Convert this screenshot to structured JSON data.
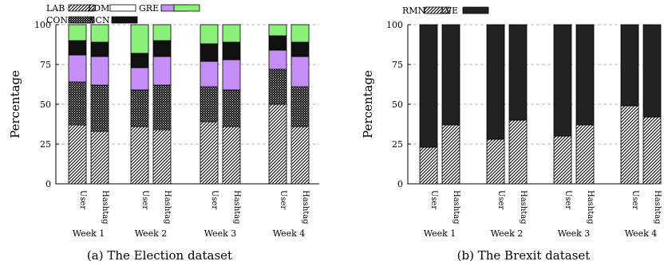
{
  "chart_data": [
    {
      "type": "bar",
      "stacked": true,
      "caption": "(a) The Election dataset",
      "ylabel": "Percentage",
      "xlabel": "",
      "ylim": [
        0,
        100
      ],
      "yticks": [
        0,
        25,
        50,
        75,
        100
      ],
      "grid": true,
      "legend_position": "top-left",
      "groups": [
        "Week 1",
        "Week 2",
        "Week 3",
        "Week 4"
      ],
      "bar_labels": [
        "User",
        "Hashtag"
      ],
      "series": [
        {
          "name": "LAB",
          "pattern": "diag",
          "values": [
            37,
            33,
            36,
            34,
            39,
            36,
            50,
            36
          ]
        },
        {
          "name": "CON",
          "pattern": "dots",
          "values": [
            27,
            29,
            23,
            28,
            22,
            23,
            22,
            25
          ]
        },
        {
          "name": "LDM",
          "pattern": "plain",
          "values": [
            0,
            0,
            0,
            0,
            0,
            0,
            0,
            0
          ]
        },
        {
          "name": "SCN",
          "pattern": "solid",
          "values": [
            0,
            0,
            0,
            0,
            0,
            0,
            0,
            0
          ]
        },
        {
          "name": "GRE",
          "pattern": "violet",
          "values": [
            17,
            18,
            14,
            18,
            16,
            19,
            12,
            19
          ]
        },
        {
          "name": "",
          "pattern": "black",
          "values": [
            9,
            9,
            9,
            10,
            11,
            11,
            9,
            9
          ]
        },
        {
          "name": "",
          "pattern": "green",
          "values": [
            10,
            11,
            18,
            10,
            12,
            11,
            7,
            11
          ]
        }
      ],
      "legend": [
        {
          "name": "LAB",
          "pattern": "diag"
        },
        {
          "name": "LDM",
          "pattern": "plain"
        },
        {
          "name": "GRE",
          "pattern": "violet"
        },
        {
          "name": "",
          "pattern": "green"
        },
        {
          "name": "CON",
          "pattern": "dots"
        },
        {
          "name": "SCN",
          "pattern": "black"
        }
      ],
      "colors": {
        "violet": "#c58ef7",
        "green": "#8af07a",
        "black": "#111111"
      }
    },
    {
      "type": "bar",
      "stacked": true,
      "caption": "(b) The Brexit dataset",
      "ylabel": "Percentage",
      "xlabel": "",
      "ylim": [
        0,
        100
      ],
      "yticks": [
        0,
        25,
        50,
        75,
        100
      ],
      "grid": true,
      "legend_position": "top-left",
      "groups": [
        "Week 1",
        "Week 2",
        "Week 3",
        "Week 4"
      ],
      "bar_labels": [
        "User",
        "Hashtag"
      ],
      "series": [
        {
          "name": "RMN",
          "pattern": "diag",
          "values": [
            23,
            37,
            28,
            40,
            30,
            37,
            49,
            42
          ]
        },
        {
          "name": "LVE",
          "pattern": "black",
          "values": [
            77,
            63,
            72,
            60,
            70,
            63,
            51,
            58
          ]
        }
      ],
      "legend": [
        {
          "name": "RMN",
          "pattern": "diag"
        },
        {
          "name": "LVE",
          "pattern": "black"
        }
      ],
      "colors": {
        "black": "#222222"
      }
    }
  ]
}
